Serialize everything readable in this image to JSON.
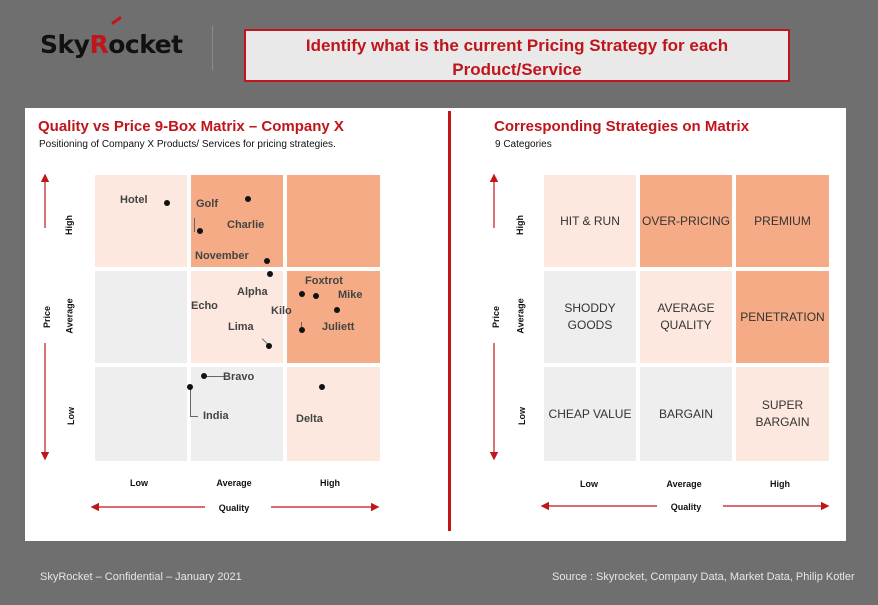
{
  "logo": {
    "part1": "Sky",
    "part2": "R",
    "part3": "ocket"
  },
  "header": {
    "line1": "Identify what is the current Pricing Strategy for each",
    "line2": "Product/Service"
  },
  "left": {
    "title": "Quality vs Price 9-Box Matrix – Company X",
    "subtitle": "Positioning of Company X Products/ Services for pricing strategies.",
    "price_axis": "Price",
    "quality_axis": "Quality",
    "rows": [
      "High",
      "Average",
      "Low"
    ],
    "cols": [
      "Low",
      "Average",
      "High"
    ],
    "items": [
      "Hotel",
      "Golf",
      "Charlie",
      "November",
      "Foxtrot",
      "Alpha",
      "Mike",
      "Echo",
      "Kilo",
      "Juliett",
      "Lima",
      "Bravo",
      "India",
      "Delta"
    ]
  },
  "right": {
    "title": "Corresponding Strategies on Matrix",
    "subtitle": "9 Categories",
    "price_axis": "Price",
    "quality_axis": "Quality",
    "rows": [
      "High",
      "Average",
      "Low"
    ],
    "cols": [
      "Low",
      "Average",
      "High"
    ],
    "cells": {
      "hit_run": "HIT & RUN",
      "over_pricing": "OVER-PRICING",
      "premium": "PREMIUM",
      "shoddy_1": "SHODDY",
      "shoddy_2": "GOODS",
      "avg_1": "AVERAGE",
      "avg_2": "QUALITY",
      "penetration": "PENETRATION",
      "cheap": "CHEAP VALUE",
      "bargain": "BARGAIN",
      "super_1": "SUPER",
      "super_2": "BARGAIN"
    }
  },
  "footer": {
    "left": "SkyRocket – Confidential – January 2021",
    "right": "Source : Skyrocket, Company Data, Market Data, Philip Kotler"
  },
  "colors": {
    "accent": "#c0151b",
    "cell_gray": "#eeeeee",
    "cell_light": "#fce8de",
    "cell_orange": "#f5ac86"
  }
}
